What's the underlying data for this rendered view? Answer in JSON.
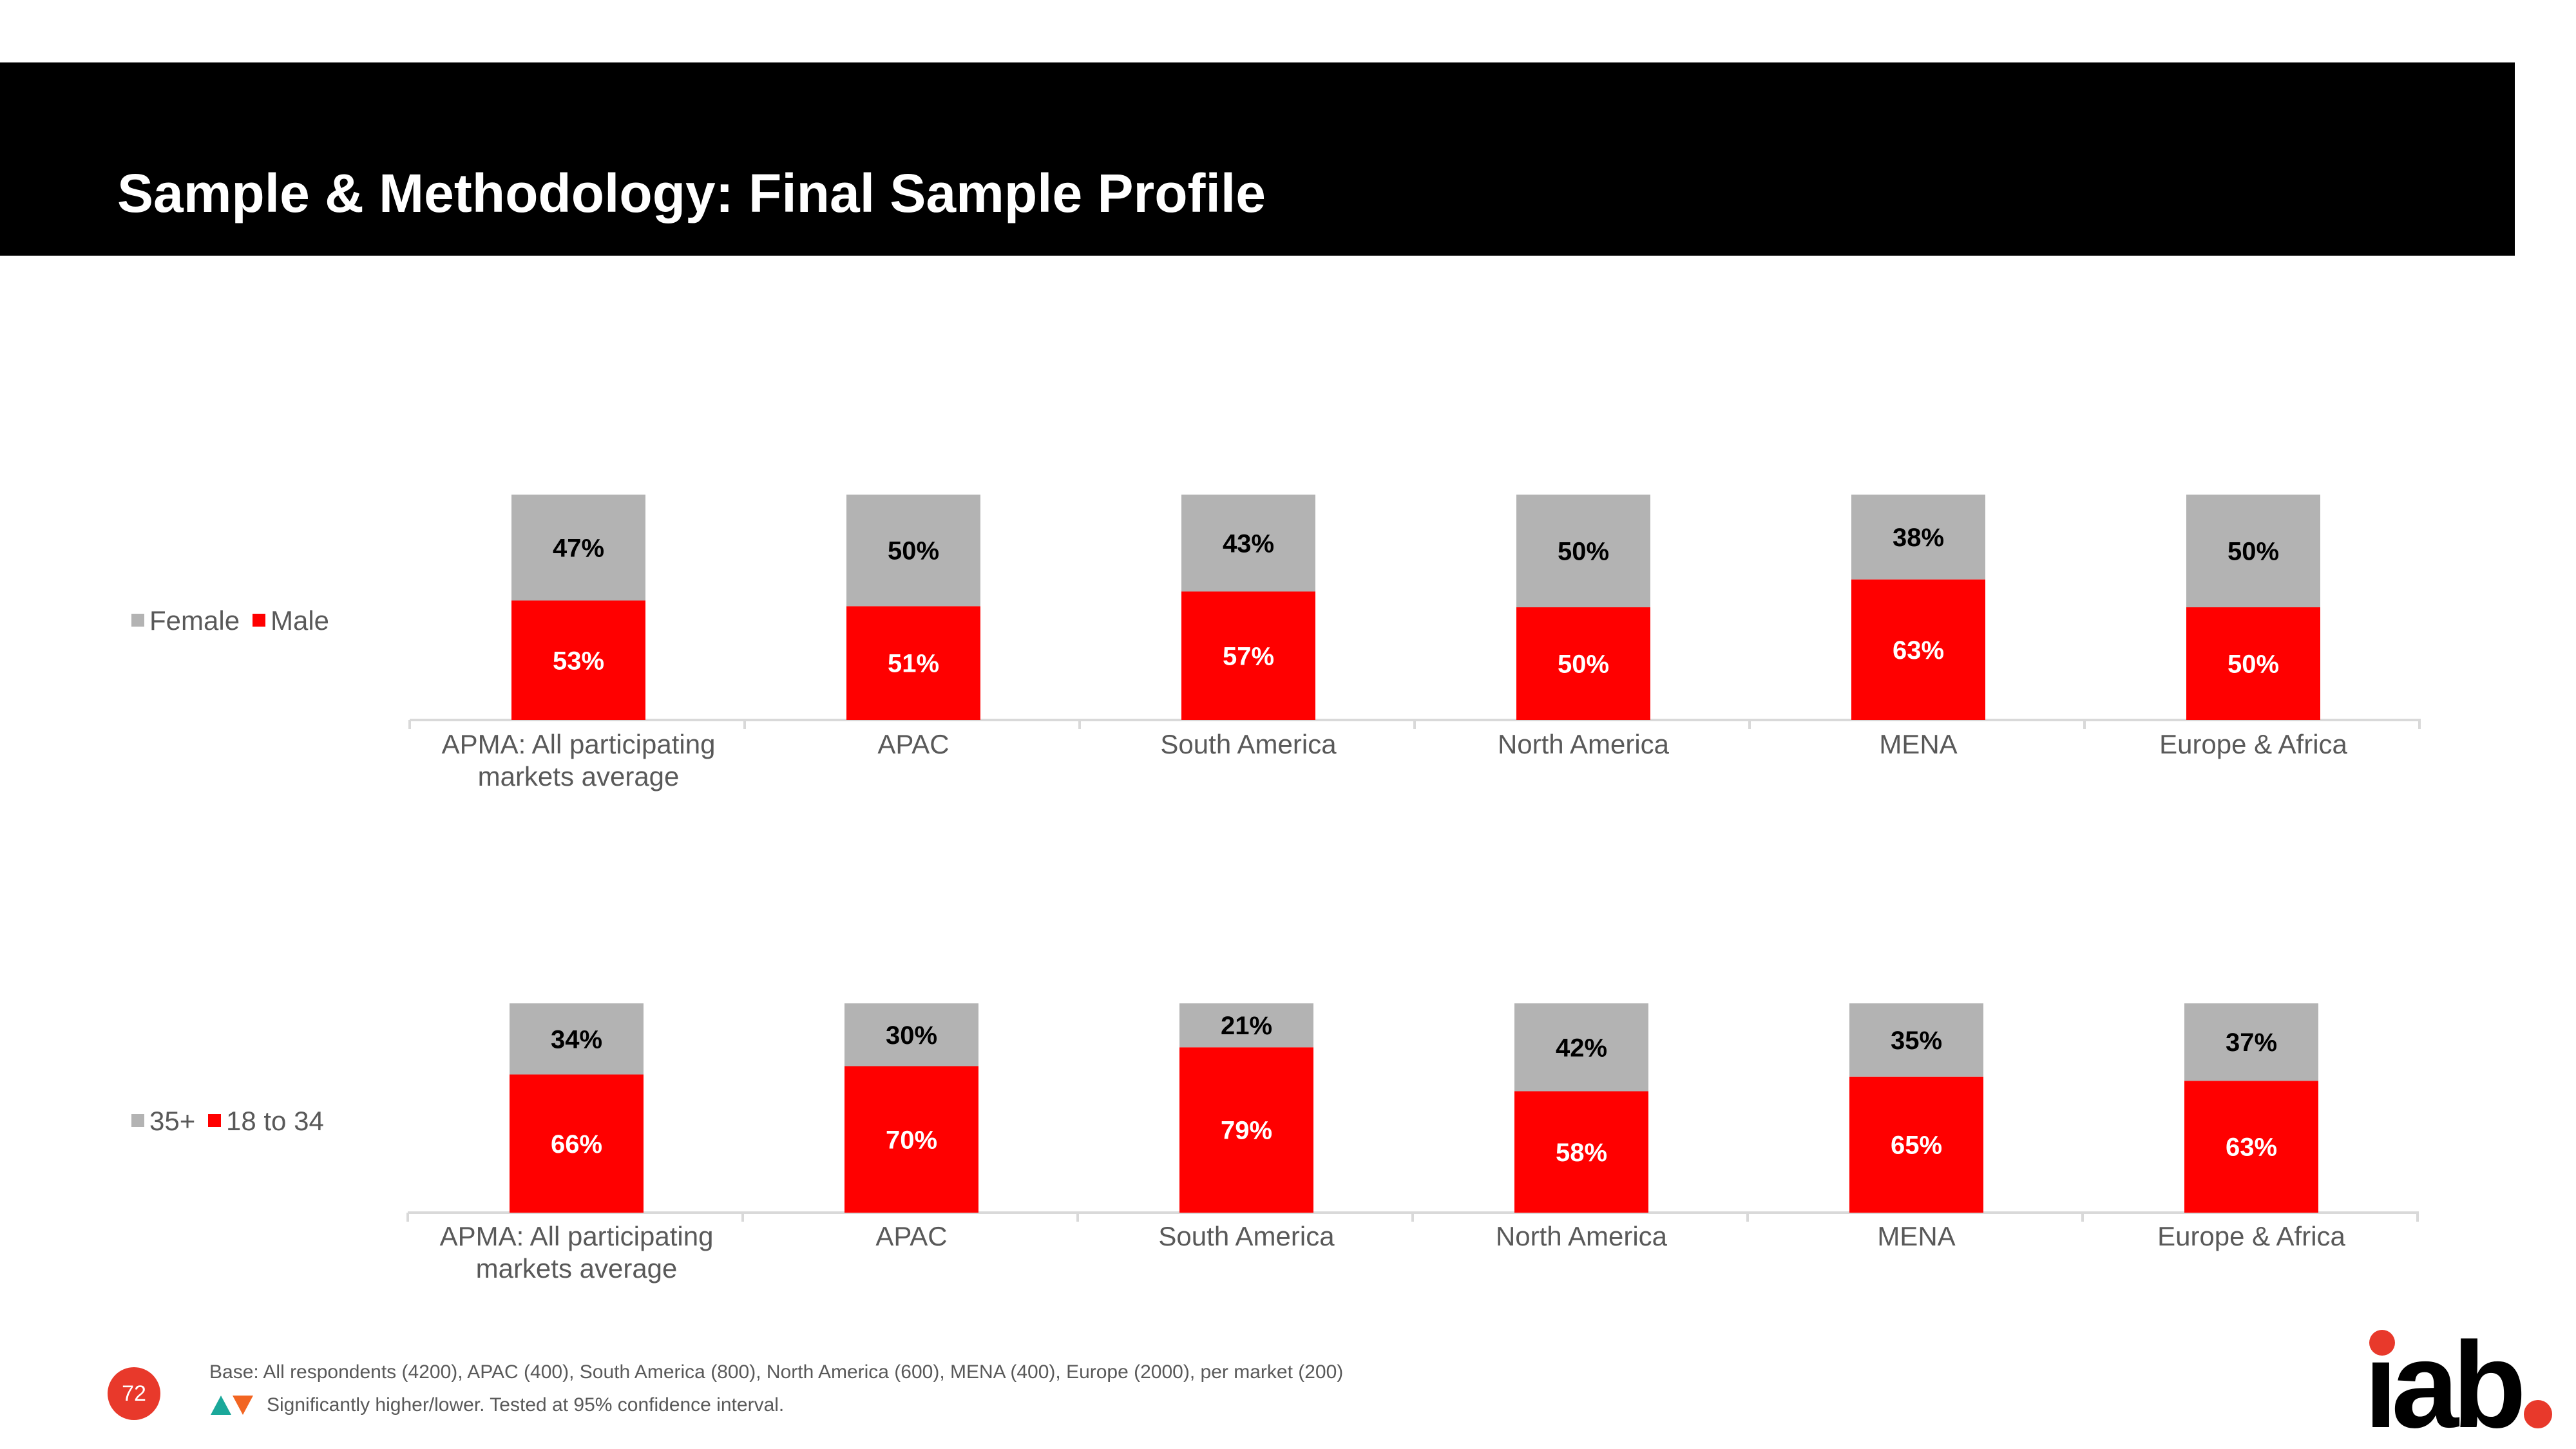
{
  "page": {
    "title": "Sample & Methodology: Final Sample Profile",
    "page_number": "72",
    "base_note": "Base: All respondents (4200), APAC (400), South America (800), North America (600), MENA (400), Europe (2000), per market (200)",
    "significance_note": "Significantly higher/lower. Tested at 95% confidence interval.",
    "logo_text": "iab."
  },
  "colors": {
    "header": "#000000",
    "gray": "#b3b3b3",
    "red": "#ff0000",
    "badge": "#e8392b",
    "up_arrow": "#1aa89a",
    "down_arrow": "#f26522"
  },
  "chart_data": [
    {
      "type": "bar",
      "stacked": "100%",
      "legend": "left",
      "categories": [
        "APMA: All participating markets average",
        "APAC",
        "South America",
        "North America",
        "MENA",
        "Europe & Africa"
      ],
      "series": [
        {
          "name": "Male",
          "color": "#ff0000",
          "values": [
            53,
            51,
            57,
            50,
            63,
            50
          ],
          "labels": [
            "53%",
            "51%",
            "57%",
            "50%",
            "63%",
            "50%"
          ]
        },
        {
          "name": "Female",
          "color": "#b3b3b3",
          "values": [
            47,
            50,
            43,
            50,
            38,
            50
          ],
          "labels": [
            "47%",
            "50%",
            "43%",
            "50%",
            "38%",
            "50%"
          ]
        }
      ]
    },
    {
      "type": "bar",
      "stacked": "100%",
      "legend": "left",
      "categories": [
        "APMA: All participating markets average",
        "APAC",
        "South America",
        "North America",
        "MENA",
        "Europe & Africa"
      ],
      "series": [
        {
          "name": "18 to 34",
          "color": "#ff0000",
          "values": [
            66,
            70,
            79,
            58,
            65,
            63
          ],
          "labels": [
            "66%",
            "70%",
            "79%",
            "58%",
            "65%",
            "63%"
          ]
        },
        {
          "name": "35+",
          "color": "#b3b3b3",
          "values": [
            34,
            30,
            21,
            42,
            35,
            37
          ],
          "labels": [
            "34%",
            "30%",
            "21%",
            "42%",
            "35%",
            "37%"
          ]
        }
      ]
    }
  ]
}
